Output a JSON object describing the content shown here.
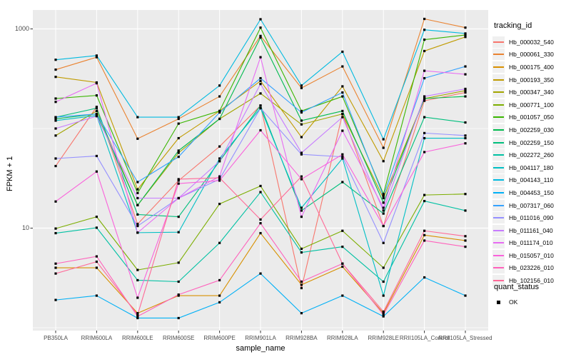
{
  "figure": {
    "x_axis_title": "sample_name",
    "y_axis_title": "FPKM + 1",
    "legend_title": "tracking_id",
    "legend2_title": "quant_status",
    "legend2_item": "OK"
  },
  "panel": {
    "background": "#ebebeb",
    "grid_color": "#ffffff",
    "tick_color": "#333333",
    "tick_text_color": "#4d4d4d",
    "marker_color": "#000000"
  },
  "chart_data": {
    "type": "line",
    "title": "",
    "xlabel": "sample_name",
    "ylabel": "FPKM + 1",
    "y_scale": "log10",
    "ylim": [
      1,
      1600
    ],
    "y_ticks": [
      {
        "label": "1000",
        "value": 1000
      },
      {
        "label": "10",
        "value": 10
      }
    ],
    "y_minor_gridlines": [
      1,
      100
    ],
    "grid": true,
    "legend_position": "right",
    "point_marker": {
      "shape": "square",
      "color": "#000000",
      "size": 3
    },
    "values_unit": "FPKM+1",
    "categories": [
      "PB350LA",
      "RRIM600LA",
      "RRIM600LE",
      "RRIM600SE",
      "RRIM600PE",
      "RRIM901LA",
      "RRIM928BA",
      "RRIM928LA",
      "RRIM928LE",
      "RRII105LA_Control",
      "RRII105LA_Stressed"
    ],
    "series": [
      {
        "name": "Hb_000032_540",
        "color": "#F8766D",
        "values": [
          42,
          165,
          11,
          30,
          66,
          170,
          2.5,
          140,
          10.5,
          190,
          230
        ]
      },
      {
        "name": "Hb_000061_330",
        "color": "#EA8331",
        "values": [
          390,
          520,
          79,
          125,
          210,
          850,
          255,
          420,
          64,
          1260,
          1030
        ]
      },
      {
        "name": "Hb_000175_400",
        "color": "#D89000",
        "values": [
          4.0,
          4.0,
          1.4,
          2.1,
          2.1,
          8.9,
          2.7,
          4.1,
          1.4,
          8.5,
          7.5
        ]
      },
      {
        "name": "Hb_000193_350",
        "color": "#C09B00",
        "values": [
          330,
          290,
          24.5,
          80,
          150,
          300,
          82,
          265,
          47,
          600,
          830
        ]
      },
      {
        "name": "Hb_000347_340",
        "color": "#A3A500",
        "values": [
          85,
          150,
          17,
          57,
          125,
          225,
          110,
          140,
          20,
          200,
          240
        ]
      },
      {
        "name": "Hb_000771_100",
        "color": "#7CAE00",
        "values": [
          9.9,
          13,
          3.8,
          4.5,
          17.5,
          26.5,
          6.2,
          9.4,
          4.0,
          21.5,
          22
        ]
      },
      {
        "name": "Hb_001057_050",
        "color": "#39B600",
        "values": [
          200,
          215,
          22.5,
          112,
          150,
          1030,
          150,
          210,
          22,
          780,
          870
        ]
      },
      {
        "name": "Hb_002259_030",
        "color": "#00BB4E",
        "values": [
          125,
          140,
          17,
          60,
          125,
          820,
          120,
          150,
          18,
          200,
          210
        ]
      },
      {
        "name": "Hb_002259_150",
        "color": "#00BF7D",
        "values": [
          130,
          160,
          13.7,
          13,
          47,
          170,
          15,
          29,
          14,
          130,
          115
        ]
      },
      {
        "name": "Hb_002272_260",
        "color": "#00C1A3",
        "values": [
          8.9,
          10.1,
          3.0,
          2.9,
          7.1,
          23,
          5.7,
          6.5,
          2.9,
          18.7,
          15
        ]
      },
      {
        "name": "Hb_004117_180",
        "color": "#00BFC4",
        "values": [
          120,
          135,
          9.0,
          9.1,
          50,
          160,
          16,
          50,
          2.1,
          80,
          80
        ]
      },
      {
        "name": "Hb_004143_110",
        "color": "#00BAE0",
        "values": [
          490,
          540,
          130,
          130,
          270,
          1250,
          270,
          590,
          78,
          980,
          900
        ]
      },
      {
        "name": "Hb_004453_150",
        "color": "#00B0F6",
        "values": [
          1.9,
          2.1,
          1.25,
          1.25,
          1.8,
          3.5,
          1.4,
          2.1,
          1.3,
          3.2,
          2.1
        ]
      },
      {
        "name": "Hb_007317_060",
        "color": "#35A2FF",
        "values": [
          130,
          140,
          29,
          52,
          145,
          320,
          145,
          230,
          21,
          320,
          420
        ]
      },
      {
        "name": "Hb_011016_090",
        "color": "#9590FF",
        "values": [
          50,
          53,
          10.5,
          20,
          31,
          160,
          55,
          52,
          7.1,
          90,
          85
        ]
      },
      {
        "name": "Hb_011161_040",
        "color": "#C77CFF",
        "values": [
          100,
          133,
          20,
          20,
          47,
          280,
          57,
          130,
          15,
          210,
          250
        ]
      },
      {
        "name": "Hb_011174_010",
        "color": "#E76BF3",
        "values": [
          185,
          285,
          9.0,
          20,
          33,
          520,
          13,
          95,
          16,
          380,
          350
        ]
      },
      {
        "name": "Hb_015057_010",
        "color": "#FA62DB",
        "values": [
          18.5,
          37,
          2.0,
          28,
          30,
          96,
          31,
          55,
          10.5,
          58,
          71
        ]
      },
      {
        "name": "Hb_023226_010",
        "color": "#FF62BC",
        "values": [
          4.4,
          5.2,
          1.3,
          2.15,
          3.0,
          11.2,
          2.9,
          4.4,
          1.35,
          7.5,
          6.5
        ]
      },
      {
        "name": "Hb_102156_010",
        "color": "#FF6A98",
        "values": [
          3.5,
          4.6,
          1.35,
          31,
          32,
          12.2,
          33,
          4.4,
          1.45,
          9.4,
          8.3
        ]
      }
    ],
    "quant_status": {
      "title": "quant_status",
      "items": [
        {
          "label": "OK",
          "marker": "black-square"
        }
      ]
    }
  }
}
